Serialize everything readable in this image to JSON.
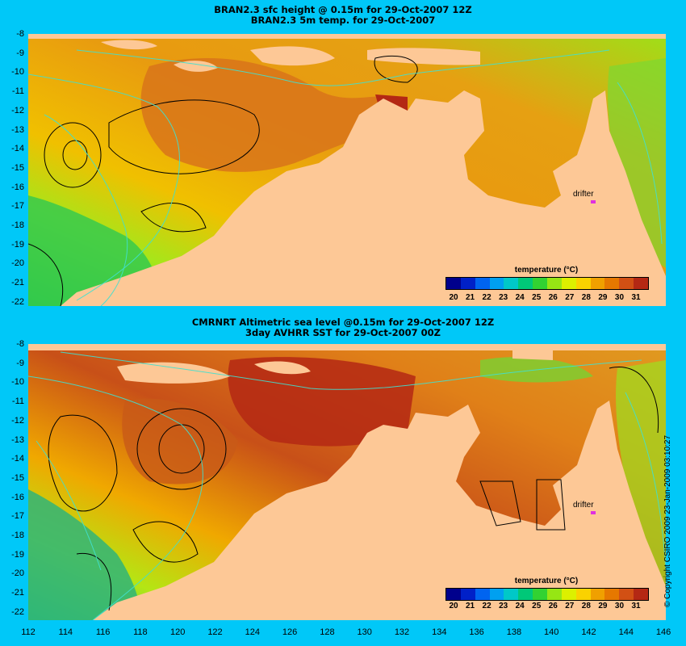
{
  "top_panel": {
    "title_line1": "BRAN2.3 sfc height @ 0.15m for 29-Oct-2007 12Z",
    "title_line2": "BRAN2.3 5m temp. for 29-Oct-2007",
    "drifter_label": "drifter",
    "legend_title": "temperature (°C)"
  },
  "bottom_panel": {
    "title_line1": "CMRNRT Altimetric sea level  @0.15m  for 29-Oct-2007 12Z",
    "title_line2": "3day AVHRR SST for 29-Oct-2007 00Z",
    "drifter_label": "drifter",
    "legend_title": "temperature (°C)"
  },
  "y_ticks": [
    "-8",
    "-9",
    "-10",
    "-11",
    "-12",
    "-13",
    "-14",
    "-15",
    "-16",
    "-17",
    "-18",
    "-19",
    "-20",
    "-21",
    "-22"
  ],
  "x_ticks": [
    "112",
    "114",
    "116",
    "118",
    "120",
    "122",
    "124",
    "126",
    "128",
    "130",
    "132",
    "134",
    "136",
    "138",
    "140",
    "142",
    "144",
    "146"
  ],
  "legend_ticks": [
    "20",
    "21",
    "22",
    "23",
    "24",
    "25",
    "26",
    "27",
    "28",
    "29",
    "30",
    "31"
  ],
  "legend_colors": [
    "#00008c",
    "#0020c8",
    "#0064f0",
    "#00a0f0",
    "#00c8c8",
    "#00c878",
    "#32d232",
    "#96e614",
    "#dcf000",
    "#fad200",
    "#f0a000",
    "#e67800",
    "#d25014",
    "#b42814"
  ],
  "colors": {
    "background": "#00c8f8",
    "land": "#fdc896",
    "drifter": "#e030e0"
  },
  "copyright": "© Copyright CSIRO 2009   23-Jan-2009 03:10:27"
}
